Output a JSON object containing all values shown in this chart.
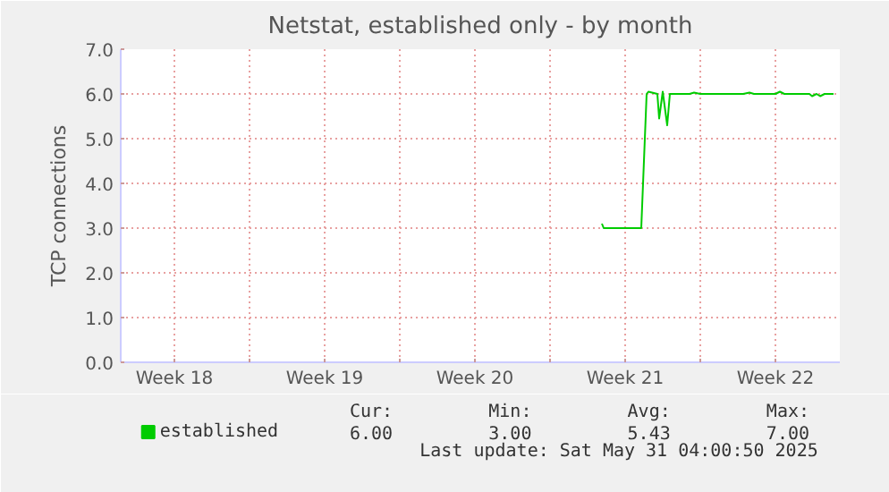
{
  "chart_data": {
    "type": "line",
    "title": "Netstat, established only - by month",
    "ylabel": "TCP connections",
    "xlim": [
      "2025-04-27T16:00",
      "2025-05-31T04:00"
    ],
    "xticks": [
      {
        "value": "2025-04-30T04:00",
        "label": "Week 18"
      },
      {
        "value": "2025-05-03T16:00",
        "label": null
      },
      {
        "value": "2025-05-07T04:00",
        "label": "Week 19"
      },
      {
        "value": "2025-05-10T16:00",
        "label": null
      },
      {
        "value": "2025-05-14T04:00",
        "label": "Week 20"
      },
      {
        "value": "2025-05-17T16:00",
        "label": null
      },
      {
        "value": "2025-05-21T04:00",
        "label": "Week 21"
      },
      {
        "value": "2025-05-24T16:00",
        "label": null
      },
      {
        "value": "2025-05-28T04:00",
        "label": "Week 22"
      }
    ],
    "ylim": [
      0,
      7
    ],
    "yticks": [
      {
        "value": 0,
        "label": "0.0"
      },
      {
        "value": 1,
        "label": "1.0"
      },
      {
        "value": 2,
        "label": "2.0"
      },
      {
        "value": 3,
        "label": "3.0"
      },
      {
        "value": 4,
        "label": "4.0"
      },
      {
        "value": 5,
        "label": "5.0"
      },
      {
        "value": 6,
        "label": "6.0"
      },
      {
        "value": 7,
        "label": "7.0"
      }
    ],
    "grid": true,
    "legend": "bottom",
    "series": [
      {
        "name": "established",
        "color": "#00cc00",
        "x": [
          "2025-05-20T02:00",
          "2025-05-20T04:00",
          "2025-05-21T22:00",
          "2025-05-22T04:00",
          "2025-05-22T06:00",
          "2025-05-22T16:00",
          "2025-05-22T18:00",
          "2025-05-22T22:00",
          "2025-05-23T03:00",
          "2025-05-23T06:00",
          "2025-05-24T04:00",
          "2025-05-24T09:00",
          "2025-05-24T16:00",
          "2025-05-26T16:00",
          "2025-05-26T23:00",
          "2025-05-27T04:00",
          "2025-05-28T04:00",
          "2025-05-28T09:00",
          "2025-05-28T14:00",
          "2025-05-29T18:00",
          "2025-05-29T21:00",
          "2025-05-30T02:00",
          "2025-05-30T06:00",
          "2025-05-30T11:00",
          "2025-05-30T21:00"
        ],
        "values": [
          3.1,
          3.0,
          3.0,
          6.0,
          6.05,
          6.0,
          5.45,
          6.05,
          5.3,
          6.0,
          6.0,
          6.03,
          6.0,
          6.0,
          6.03,
          6.0,
          6.0,
          6.05,
          6.0,
          6.0,
          5.95,
          6.0,
          5.95,
          6.0,
          6.0
        ]
      }
    ],
    "annotations": [
      "Cur:",
      "6.00",
      "Min:",
      "3.00",
      "Avg:",
      "5.43",
      "Max:",
      "7.00",
      "Last update: Sat May 31 04:00:50 2025"
    ]
  }
}
